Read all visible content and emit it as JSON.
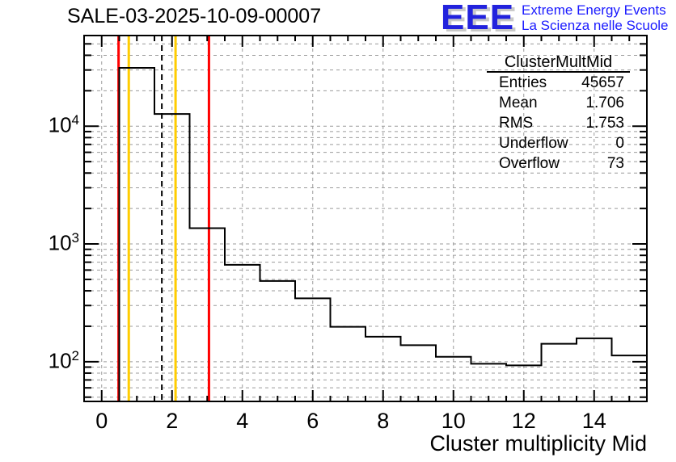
{
  "header": {
    "logo": {
      "letters": "EEE",
      "line1": "Extreme Energy Events",
      "line2": "La Scienza nelle Scuole"
    }
  },
  "stats": {
    "title": "ClusterMultMid",
    "rows": [
      {
        "label": "Entries",
        "value": "45657"
      },
      {
        "label": "Mean",
        "value": "1.706"
      },
      {
        "label": "RMS",
        "value": "1.753"
      },
      {
        "label": "Underflow",
        "value": "0"
      },
      {
        "label": "Overflow",
        "value": "73"
      }
    ]
  },
  "chart_data": {
    "type": "bar",
    "style": "step-outline-histogram",
    "title": "SALE-03-2025-10-09-00007",
    "xlabel": "Cluster multiplicity Mid",
    "ylabel": "",
    "x_range": [
      -0.5,
      15.5
    ],
    "y_scale": "log",
    "ylim": [
      46,
      58850
    ],
    "grid": true,
    "bin_centers": [
      1,
      2,
      3,
      4,
      5,
      6,
      7,
      8,
      9,
      10,
      11,
      12,
      13,
      14,
      15
    ],
    "bin_edges": [
      0.5,
      1.5,
      2.5,
      3.5,
      4.5,
      5.5,
      6.5,
      7.5,
      8.5,
      9.5,
      10.5,
      11.5,
      12.5,
      13.5,
      14.5,
      15.5
    ],
    "values": [
      31300,
      12700,
      1360,
      665,
      485,
      345,
      198,
      163,
      138,
      110,
      96,
      93,
      142,
      158,
      113
    ],
    "x_major_ticks": [
      0,
      2,
      4,
      6,
      8,
      10,
      12,
      14
    ],
    "x_minor_step": 0.5,
    "y_major_labels": [
      {
        "value": 100,
        "base": "10",
        "exp": "2"
      },
      {
        "value": 1000,
        "base": "10",
        "exp": "3"
      },
      {
        "value": 10000,
        "base": "10",
        "exp": "4"
      }
    ],
    "marker_lines": [
      {
        "name": "red-line-left",
        "x": 0.48,
        "color": "#ff0000",
        "dash": "",
        "width": 3
      },
      {
        "name": "red-line-right",
        "x": 3.05,
        "color": "#ff0000",
        "dash": "",
        "width": 3
      },
      {
        "name": "yellow-line-left",
        "x": 0.77,
        "color": "#ffcc00",
        "dash": "",
        "width": 3
      },
      {
        "name": "yellow-line-right",
        "x": 2.1,
        "color": "#ffcc00",
        "dash": "",
        "width": 3
      },
      {
        "name": "dashed-mean-line",
        "x": 1.71,
        "color": "#000000",
        "dash": "7,5",
        "width": 2
      }
    ],
    "colors": {
      "histogram_line": "#000000",
      "axis": "#000000",
      "grid": "#9b9b9b",
      "logo_blue": "#1a1aff"
    }
  }
}
